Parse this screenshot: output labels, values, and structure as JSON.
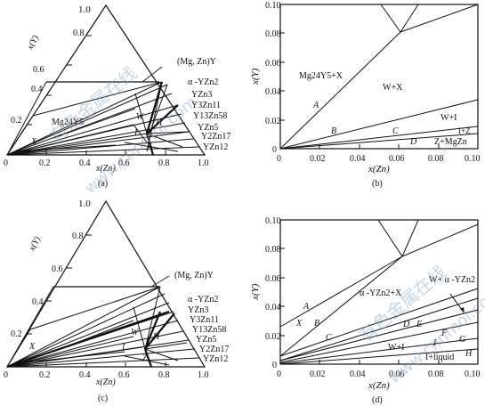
{
  "panels": [
    {
      "id": "a",
      "type": "ternary",
      "caption": "(a)",
      "y_axis_label": "x(Y)",
      "x_axis_label": "x(Zn)",
      "apex_label": "1.0",
      "left_ticks": [
        "0.2",
        "0.4",
        "0.6",
        "0.8"
      ],
      "bottom_ticks": [
        "0",
        "0.2",
        "0.4",
        "0.6",
        "0.8",
        "1.0"
      ],
      "phase_labels": [
        "(Mg, Zn)Y",
        "α -YZn2",
        "YZn3",
        "Y3Zn11",
        "Y13Zn58",
        "YZn5",
        "Y2Zn17",
        "YZn12",
        "Mg24Y5",
        "W",
        "H",
        "I",
        "X",
        "Z"
      ]
    },
    {
      "id": "b",
      "type": "cartesian",
      "caption": "(b)",
      "y_axis_label": "x(Y)",
      "x_axis_label": "x(Zn)",
      "y_ticks": [
        "0",
        "0.02",
        "0.04",
        "0.06",
        "0.08",
        "0.10"
      ],
      "x_ticks": [
        "0",
        "0.02",
        "0.04",
        "0.06",
        "0.08",
        "0.10"
      ],
      "region_labels": [
        "Mg24Y5+X",
        "W+X",
        "W+I",
        "I+Z",
        "Z+MgZn",
        "A",
        "B",
        "C",
        "D"
      ]
    },
    {
      "id": "c",
      "type": "ternary",
      "caption": "(c)",
      "y_axis_label": "x(Y)",
      "x_axis_label": "x(Zn)",
      "apex_label": "1.0",
      "left_ticks": [
        "0.2",
        "0.4",
        "0.6",
        "0.8"
      ],
      "bottom_ticks": [
        "0",
        "0.2",
        "0.4",
        "0.6",
        "0.8",
        "1.0"
      ],
      "phase_labels": [
        "(Mg, Zn)Y",
        "α -YZn2",
        "YZn3",
        "Y3Zn11",
        "Y13Zn58",
        "YZn5",
        "Y2Zn17",
        "YZn12",
        "X",
        "W",
        "H",
        "I",
        "Z"
      ]
    },
    {
      "id": "d",
      "type": "cartesian",
      "caption": "(d)",
      "y_axis_label": "x(Y)",
      "x_axis_label": "x(Zn)",
      "y_ticks": [
        "0",
        "0.02",
        "0.04",
        "0.06",
        "0.08",
        "0.10"
      ],
      "x_ticks": [
        "0",
        "0.02",
        "0.04",
        "0.06",
        "0.08",
        "0.10"
      ],
      "region_labels": [
        "α -YZn2+X",
        "W+ α -YZn2",
        "W+I",
        "I+liquid",
        "A",
        "X",
        "B",
        "C",
        "D",
        "E",
        "F",
        "G",
        "H",
        "I"
      ]
    }
  ],
  "watermark": [
    "有色金属在线",
    "www.cnnmol.com"
  ]
}
